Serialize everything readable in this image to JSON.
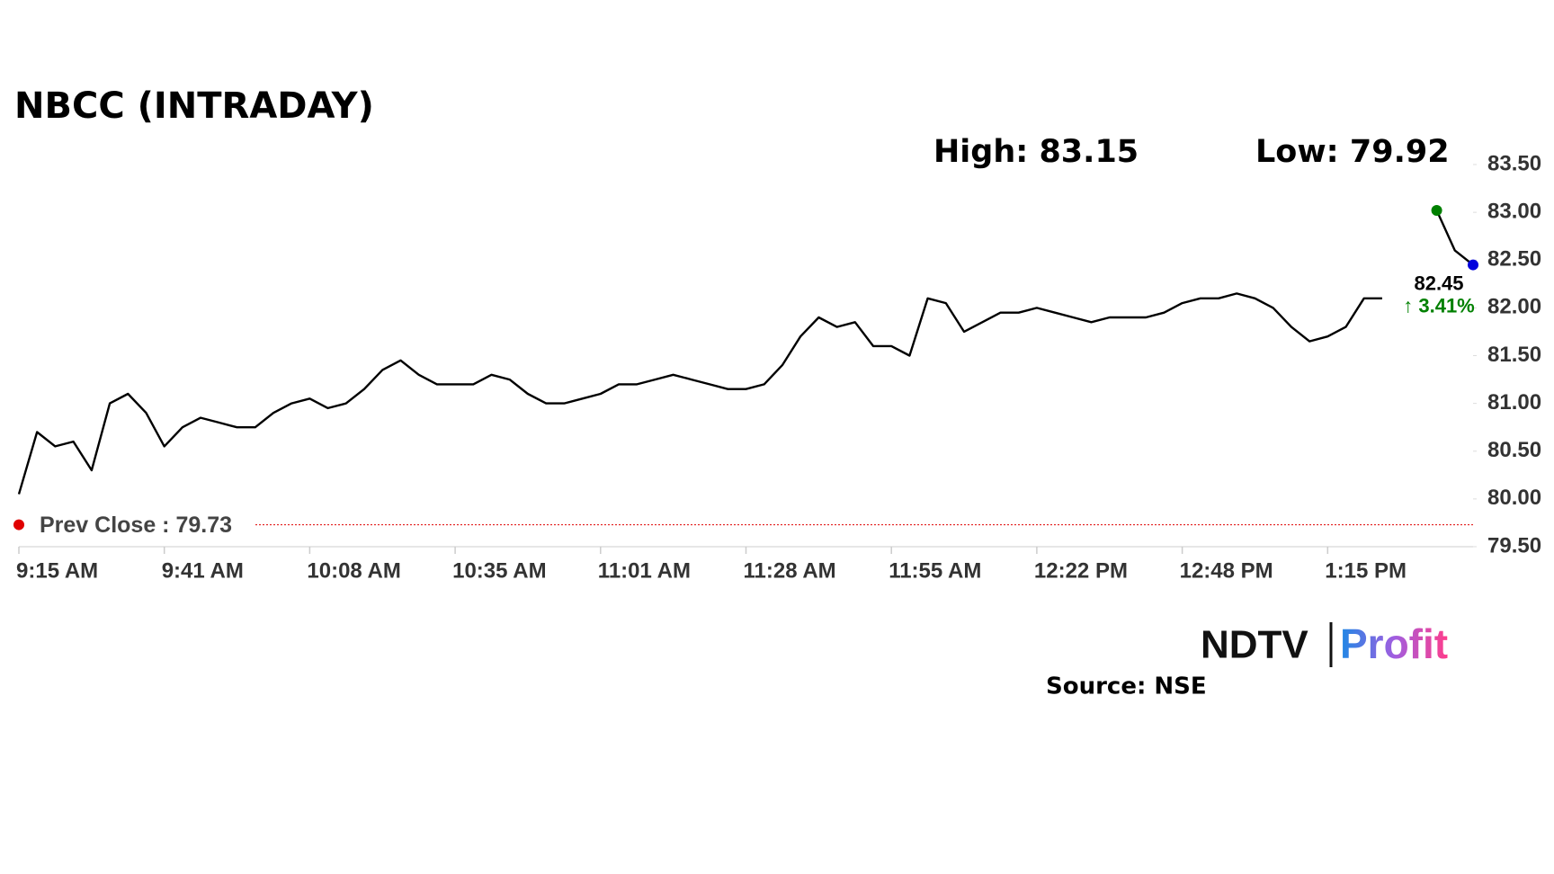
{
  "chart_data": {
    "type": "line",
    "title": "NBCC (INTRADAY)",
    "high_label": "High: 83.15",
    "low_label": "Low: 79.92",
    "prev_close": {
      "value": 79.73,
      "label": "Prev Close : 79.73"
    },
    "last_price_label": "82.45",
    "change_label": "↑ 3.41%",
    "source": "Source: NSE",
    "logo": [
      "NDTV",
      "Profit"
    ],
    "categories": [
      "9:15 AM",
      null,
      null,
      null,
      null,
      null,
      null,
      null,
      "9:41 AM",
      null,
      null,
      null,
      null,
      null,
      null,
      null,
      "10:08 AM",
      null,
      null,
      null,
      null,
      null,
      null,
      null,
      "10:35 AM",
      null,
      null,
      null,
      null,
      null,
      null,
      null,
      "11:01 AM",
      null,
      null,
      null,
      null,
      null,
      null,
      null,
      "11:28 AM",
      null,
      null,
      null,
      null,
      null,
      null,
      null,
      "11:55 AM",
      null,
      null,
      null,
      null,
      null,
      null,
      null,
      "12:22 PM",
      null,
      null,
      null,
      null,
      null,
      null,
      null,
      "12:48 PM",
      null,
      null,
      null,
      null,
      null,
      null,
      null,
      "1:15 PM",
      null,
      null,
      null,
      null,
      null,
      null,
      null,
      null
    ],
    "series": [
      {
        "color": "#000000",
        "values": [
          80.05,
          80.7,
          80.55,
          80.6,
          80.3,
          81.0,
          81.1,
          80.9,
          80.55,
          80.75,
          80.85,
          80.8,
          80.75,
          80.75,
          80.9,
          81.0,
          81.05,
          80.95,
          81.0,
          81.15,
          81.35,
          81.45,
          81.3,
          81.2,
          81.2,
          81.2,
          81.3,
          81.25,
          81.1,
          81.0,
          81.0,
          81.05,
          81.1,
          81.2,
          81.2,
          81.25,
          81.3,
          81.25,
          81.2,
          81.15,
          81.15,
          81.2,
          81.4,
          81.7,
          81.9,
          81.8,
          81.85,
          81.6,
          81.6,
          81.5,
          82.1,
          82.05,
          81.75,
          81.85,
          81.95,
          81.95,
          82.0,
          81.95,
          81.9,
          81.85,
          81.9,
          81.9,
          81.9,
          81.95,
          82.05,
          82.1,
          82.1,
          82.15,
          82.1,
          82.0,
          81.8,
          81.65,
          81.7,
          81.8,
          82.1,
          82.1,
          null,
          null,
          83.02,
          82.6,
          82.45
        ]
      }
    ],
    "ylim": [
      79.5,
      83.5
    ],
    "yticks": [
      {
        "value": 79.5,
        "label": "79.50"
      },
      {
        "value": 80,
        "label": "80.00"
      },
      {
        "value": 80.5,
        "label": "80.50"
      },
      {
        "value": 81,
        "label": "81.00"
      },
      {
        "value": 81.5,
        "label": "81.50"
      },
      {
        "value": 82,
        "label": "82.00"
      },
      {
        "value": 82.5,
        "label": "82.50"
      },
      {
        "value": 83,
        "label": "83.00"
      },
      {
        "value": 83.5,
        "label": "83.50"
      }
    ],
    "prev_close_color": "#e00000",
    "high_color": "#008000",
    "last_color": "#0000dd",
    "change_color": "#008000"
  }
}
